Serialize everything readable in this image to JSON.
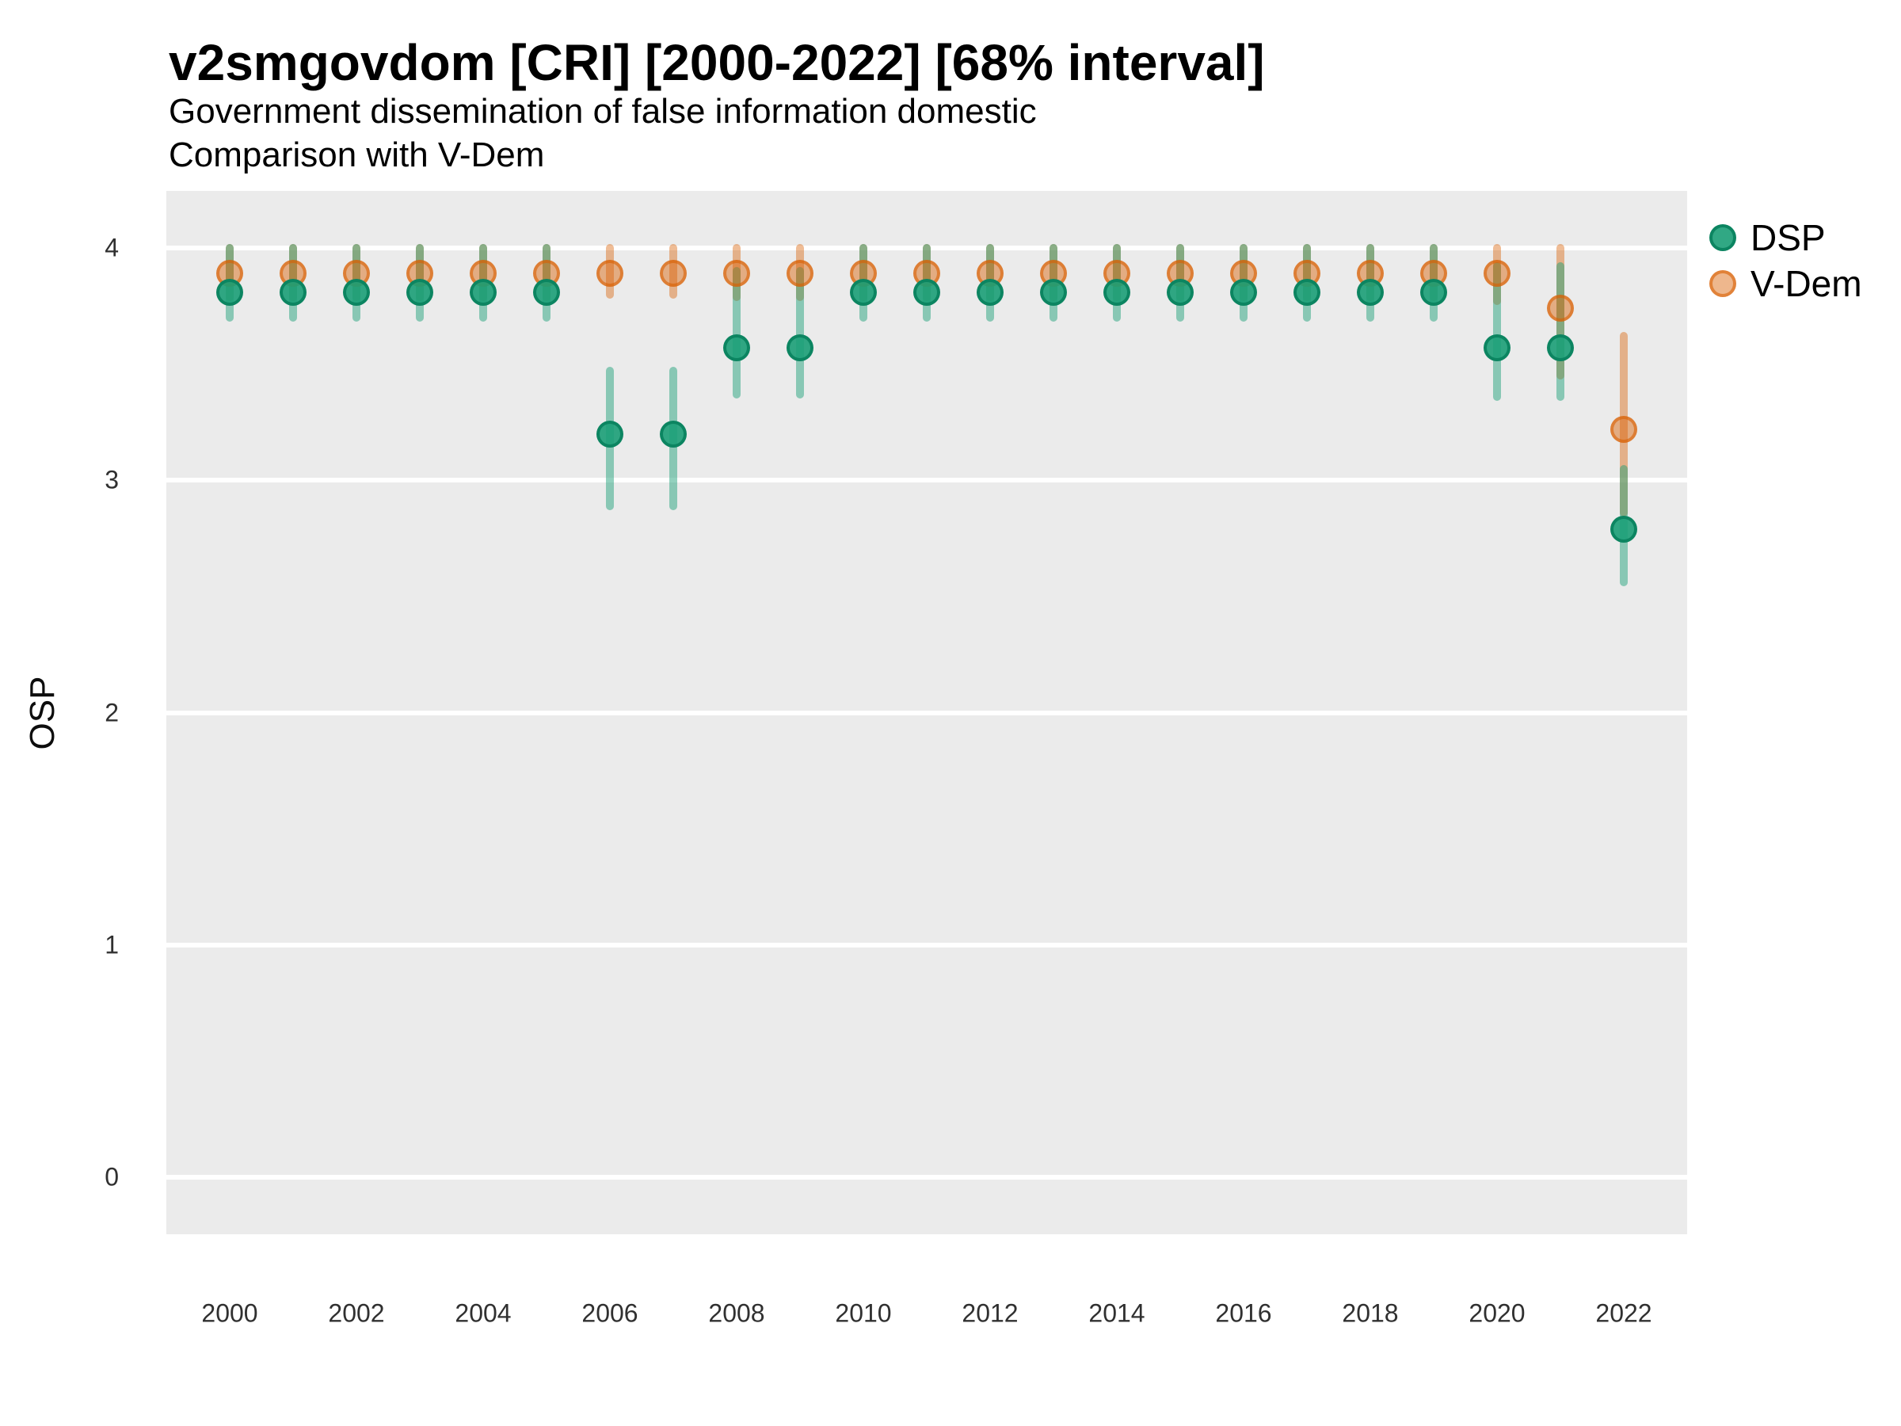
{
  "title": "v2smgovdom [CRI] [2000-2022] [68% interval]",
  "subtitle_line1": "Government dissemination of false information domestic",
  "subtitle_line2": "Comparison with V-Dem",
  "y_axis_label": "OSP",
  "legend": {
    "position": "top-right",
    "items": [
      {
        "label": "DSP",
        "color": "#1b9e77"
      },
      {
        "label": "V-Dem",
        "color": "#d95f02"
      }
    ]
  },
  "colors": {
    "dsp_green": "#1b9e77",
    "vdem_orange": "#d95f02",
    "panel_background": "#ebebeb",
    "gridline": "#ffffff",
    "tick_text": "#303030"
  },
  "chart_data": {
    "type": "scatter",
    "title": "v2smgovdom [CRI] [2000-2022] [68% interval]",
    "subtitle": [
      "Government dissemination of false information domestic",
      "Comparison with V-Dem"
    ],
    "xlabel": "",
    "ylabel": "OSP",
    "interval": "68%",
    "ylim": [
      -0.25,
      4.25
    ],
    "y_ticks": [
      0,
      1,
      2,
      3,
      4
    ],
    "x_ticks": [
      2000,
      2002,
      2004,
      2006,
      2008,
      2010,
      2012,
      2014,
      2016,
      2018,
      2020,
      2022
    ],
    "grid": "horizontal-major-only",
    "legend_position": "top-right",
    "x": [
      2000,
      2001,
      2002,
      2003,
      2004,
      2005,
      2006,
      2007,
      2008,
      2009,
      2010,
      2011,
      2012,
      2013,
      2014,
      2015,
      2016,
      2017,
      2018,
      2019,
      2020,
      2021,
      2022
    ],
    "series": [
      {
        "name": "DSP",
        "color": "#1b9e77",
        "values": [
          3.81,
          3.81,
          3.81,
          3.81,
          3.81,
          3.81,
          3.2,
          3.2,
          3.57,
          3.57,
          3.81,
          3.81,
          3.81,
          3.81,
          3.81,
          3.81,
          3.81,
          3.81,
          3.81,
          3.81,
          3.57,
          3.57,
          2.79
        ],
        "lower": [
          3.7,
          3.7,
          3.7,
          3.7,
          3.7,
          3.7,
          2.89,
          2.89,
          3.37,
          3.37,
          3.7,
          3.7,
          3.7,
          3.7,
          3.7,
          3.7,
          3.7,
          3.7,
          3.7,
          3.7,
          3.36,
          3.36,
          2.56
        ],
        "upper": [
          4.0,
          4.0,
          4.0,
          4.0,
          4.0,
          4.0,
          3.47,
          3.47,
          3.9,
          3.9,
          4.0,
          4.0,
          4.0,
          4.0,
          4.0,
          4.0,
          4.0,
          4.0,
          4.0,
          4.0,
          3.92,
          3.92,
          3.05
        ]
      },
      {
        "name": "V-Dem",
        "color": "#d95f02",
        "values": [
          3.89,
          3.89,
          3.89,
          3.89,
          3.89,
          3.89,
          3.89,
          3.89,
          3.89,
          3.89,
          3.89,
          3.89,
          3.89,
          3.89,
          3.89,
          3.89,
          3.89,
          3.89,
          3.89,
          3.89,
          3.89,
          3.74,
          3.22
        ],
        "lower": [
          3.79,
          3.79,
          3.79,
          3.79,
          3.79,
          3.79,
          3.8,
          3.8,
          3.79,
          3.79,
          3.79,
          3.79,
          3.79,
          3.79,
          3.79,
          3.79,
          3.79,
          3.79,
          3.79,
          3.79,
          3.77,
          3.45,
          2.86
        ],
        "upper": [
          4.0,
          4.0,
          4.0,
          4.0,
          4.0,
          4.0,
          4.0,
          4.0,
          4.0,
          4.0,
          4.0,
          4.0,
          4.0,
          4.0,
          4.0,
          4.0,
          4.0,
          4.0,
          4.0,
          4.0,
          4.0,
          4.0,
          3.62
        ]
      }
    ]
  }
}
